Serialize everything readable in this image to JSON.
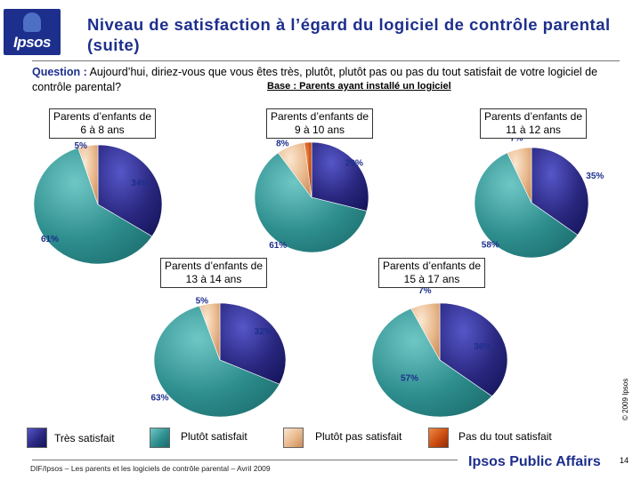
{
  "logo": {
    "text": "Ipsos"
  },
  "title": "Niveau de satisfaction à l’égard du logiciel de contrôle parental (suite)",
  "question": {
    "label": "Question :",
    "text": " Aujourd’hui, diriez-vous que vous êtes très, plutôt, plutôt pas ou pas du tout satisfait de votre logiciel de contrôle parental?",
    "base": "Base : Parents ayant installé un logiciel"
  },
  "colors": {
    "tres": "#2a2880",
    "plutot": "#2e8e8e",
    "plutot_pas": "#e8b88c",
    "pas_du_tout": "#cc4c10"
  },
  "chart_data": [
    {
      "type": "pie",
      "title": "Parents d’enfants de 6 à 8 ans",
      "series": [
        {
          "name": "Très satisfait",
          "value": 34,
          "label": "34%"
        },
        {
          "name": "Plutôt satisfait",
          "value": 61,
          "label": "61%"
        },
        {
          "name": "Plutôt pas satisfait",
          "value": 5,
          "label": "5%"
        }
      ]
    },
    {
      "type": "pie",
      "title": "Parents d’enfants de 9 à 10 ans",
      "series": [
        {
          "name": "Très satisfait",
          "value": 29,
          "label": "29%"
        },
        {
          "name": "Plutôt satisfait",
          "value": 61,
          "label": "61%"
        },
        {
          "name": "Plutôt pas satisfait",
          "value": 8,
          "label": "8%"
        },
        {
          "name": "Pas du tout satisfait",
          "value": 2,
          "label": "2%"
        }
      ]
    },
    {
      "type": "pie",
      "title": "Parents d’enfants de 11 à 12 ans",
      "series": [
        {
          "name": "Très satisfait",
          "value": 35,
          "label": "35%"
        },
        {
          "name": "Plutôt satisfait",
          "value": 58,
          "label": "58%"
        },
        {
          "name": "Plutôt pas satisfait",
          "value": 7,
          "label": "7%"
        }
      ]
    },
    {
      "type": "pie",
      "title": "Parents d’enfants de 13 à 14 ans",
      "series": [
        {
          "name": "Très satisfait",
          "value": 32,
          "label": "32%"
        },
        {
          "name": "Plutôt satisfait",
          "value": 63,
          "label": "63%"
        },
        {
          "name": "Plutôt pas satisfait",
          "value": 5,
          "label": "5%"
        }
      ]
    },
    {
      "type": "pie",
      "title": "Parents d’enfants de 15 à 17 ans",
      "series": [
        {
          "name": "Très satisfait",
          "value": 36,
          "label": "36%"
        },
        {
          "name": "Plutôt satisfait",
          "value": 57,
          "label": "57%"
        },
        {
          "name": "Plutôt pas satisfait",
          "value": 7,
          "label": "7%"
        }
      ]
    }
  ],
  "legend": [
    {
      "key": "tres",
      "label": "Très satisfait"
    },
    {
      "key": "plutot",
      "label": "Plutôt satisfait"
    },
    {
      "key": "plutot_pas",
      "label": "Plutôt pas satisfait"
    },
    {
      "key": "pas_du_tout",
      "label": "Pas du tout satisfait"
    }
  ],
  "copyright": "© 2009 Ipsos",
  "footer": "DIF/Ipsos – Les parents et les logiciels de contrôle parental – Avril 2009",
  "brand": "Ipsos Public Affairs",
  "page_number": "14"
}
